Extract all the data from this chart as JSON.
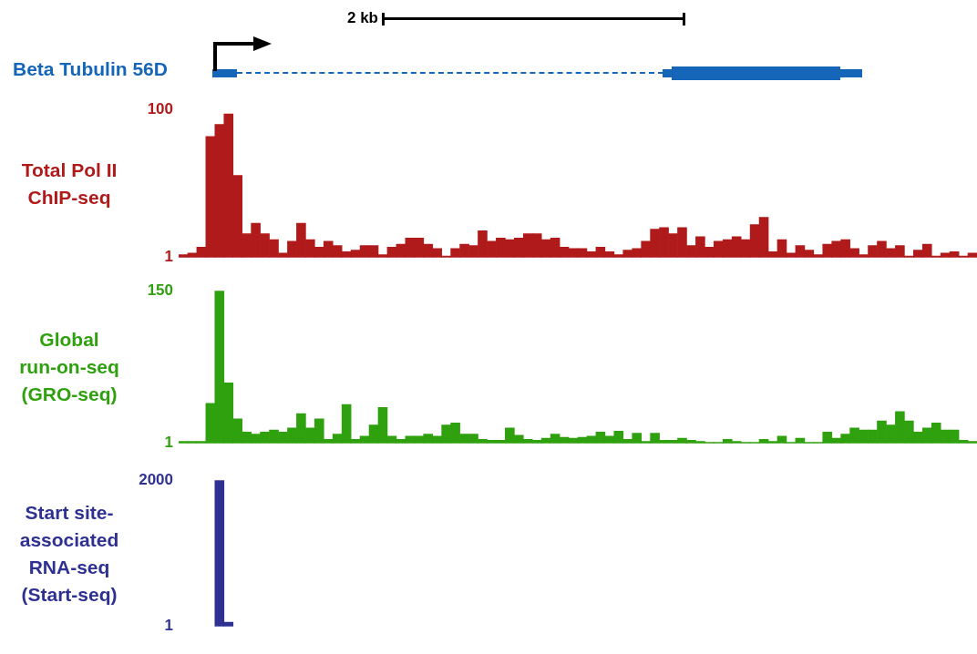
{
  "chart_data": [
    {
      "type": "bar",
      "ylabel": "Total Pol II\nChIP-seq",
      "annotations": [
        "2 kb",
        "Beta Tubulin 56D"
      ],
      "color": "#b01a1a",
      "ylim": [
        1,
        100
      ],
      "yticks": [
        1,
        100
      ],
      "tick_labels": "y",
      "categories": [
        null,
        null,
        null,
        null,
        null,
        null,
        null,
        null,
        null,
        null,
        null,
        null,
        null,
        null,
        null,
        null,
        null,
        null,
        null,
        null,
        null,
        null,
        null,
        null,
        null,
        null,
        null,
        null,
        null,
        null,
        null,
        null,
        null,
        null,
        null,
        null,
        null,
        null,
        null,
        null,
        null,
        null,
        null,
        null,
        null,
        null,
        null,
        null,
        null,
        null,
        null,
        null,
        null,
        null,
        null,
        null,
        null,
        null,
        null,
        null,
        null,
        null,
        null,
        null,
        null,
        null,
        null,
        null,
        null,
        null,
        null,
        null,
        null,
        null,
        null,
        null,
        null,
        null,
        null,
        null,
        null,
        null,
        null,
        null,
        null,
        null,
        null,
        null
      ],
      "values": [
        3,
        4,
        8,
        82,
        90,
        97,
        56,
        17,
        24,
        17,
        13,
        4,
        12,
        24,
        13,
        8,
        12,
        9,
        5,
        6,
        9,
        9,
        3,
        8,
        10,
        14,
        14,
        10,
        7,
        2,
        7,
        10,
        9,
        19,
        12,
        14,
        13,
        14,
        17,
        17,
        13,
        14,
        8,
        7,
        7,
        5,
        8,
        5,
        3,
        6,
        7,
        12,
        20,
        21,
        17,
        21,
        9,
        15,
        8,
        12,
        13,
        15,
        13,
        23,
        28,
        5,
        13,
        4,
        9,
        6,
        3,
        10,
        12,
        13,
        7,
        3,
        9,
        12,
        7,
        9,
        2,
        6,
        10,
        2,
        4,
        5,
        2,
        4
      ]
    },
    {
      "type": "bar",
      "ylabel": "Global\nrun-on-seq\n(GRO-seq)",
      "color": "#2fa00e",
      "ylim": [
        1,
        150
      ],
      "yticks": [
        1,
        150
      ],
      "tick_labels": "y",
      "categories": [
        null,
        null,
        null,
        null,
        null,
        null,
        null,
        null,
        null,
        null,
        null,
        null,
        null,
        null,
        null,
        null,
        null,
        null,
        null,
        null,
        null,
        null,
        null,
        null,
        null,
        null,
        null,
        null,
        null,
        null,
        null,
        null,
        null,
        null,
        null,
        null,
        null,
        null,
        null,
        null,
        null,
        null,
        null,
        null,
        null,
        null,
        null,
        null,
        null,
        null,
        null,
        null,
        null,
        null,
        null,
        null,
        null,
        null,
        null,
        null,
        null,
        null,
        null,
        null,
        null,
        null,
        null,
        null,
        null,
        null,
        null,
        null,
        null,
        null,
        null,
        null,
        null,
        null,
        null,
        null,
        null,
        null,
        null,
        null,
        null,
        null,
        null,
        null
      ],
      "values": [
        3,
        3,
        3,
        40,
        150,
        60,
        25,
        12,
        10,
        12,
        14,
        12,
        16,
        30,
        16,
        25,
        5,
        10,
        39,
        5,
        8,
        19,
        36,
        8,
        5,
        8,
        8,
        10,
        8,
        19,
        21,
        10,
        10,
        5,
        4,
        4,
        16,
        9,
        5,
        4,
        6,
        10,
        7,
        6,
        7,
        8,
        12,
        8,
        13,
        5,
        11,
        3,
        11,
        4,
        4,
        6,
        4,
        3,
        2,
        2,
        5,
        3,
        2,
        2,
        5,
        3,
        8,
        2,
        6,
        2,
        2,
        12,
        6,
        10,
        16,
        14,
        14,
        23,
        19,
        32,
        23,
        12,
        16,
        21,
        14,
        14,
        4,
        3
      ]
    },
    {
      "type": "bar",
      "ylabel": "Start site-\nassociated\nRNA-seq\n(Start-seq)",
      "color": "#2e3192",
      "ylim": [
        1,
        2000
      ],
      "yticks": [
        1,
        2000
      ],
      "tick_labels": "y",
      "categories": [
        null,
        null,
        null,
        null,
        null,
        null,
        null,
        null,
        null,
        null,
        null,
        null,
        null,
        null,
        null,
        null,
        null,
        null,
        null,
        null,
        null,
        null,
        null,
        null,
        null,
        null,
        null,
        null,
        null,
        null,
        null,
        null,
        null,
        null,
        null,
        null,
        null,
        null,
        null,
        null,
        null,
        null,
        null,
        null,
        null,
        null,
        null,
        null,
        null,
        null,
        null,
        null,
        null,
        null,
        null,
        null,
        null,
        null,
        null,
        null,
        null,
        null,
        null,
        null,
        null,
        null,
        null,
        null,
        null,
        null,
        null,
        null,
        null,
        null,
        null,
        null,
        null,
        null,
        null,
        null,
        null,
        null,
        null,
        null,
        null,
        null,
        null,
        null
      ],
      "values": [
        null,
        null,
        null,
        null,
        2000,
        60,
        null,
        null,
        null,
        null,
        null,
        null,
        null,
        null,
        null,
        null,
        null,
        null,
        null,
        null,
        null,
        null,
        null,
        null,
        null,
        null,
        null,
        null,
        null,
        null,
        null,
        null,
        null,
        null,
        null,
        null,
        null,
        null,
        null,
        null,
        null,
        null,
        null,
        null,
        null,
        null,
        null,
        null,
        null,
        null,
        null,
        null,
        null,
        null,
        null,
        null,
        null,
        null,
        null,
        null,
        null,
        null,
        null,
        null,
        null,
        null,
        null,
        null,
        null,
        null,
        null,
        null,
        null,
        null,
        null,
        null,
        null,
        null,
        null,
        null,
        null,
        null,
        null,
        null,
        null,
        null,
        null,
        null
      ]
    }
  ]
}
